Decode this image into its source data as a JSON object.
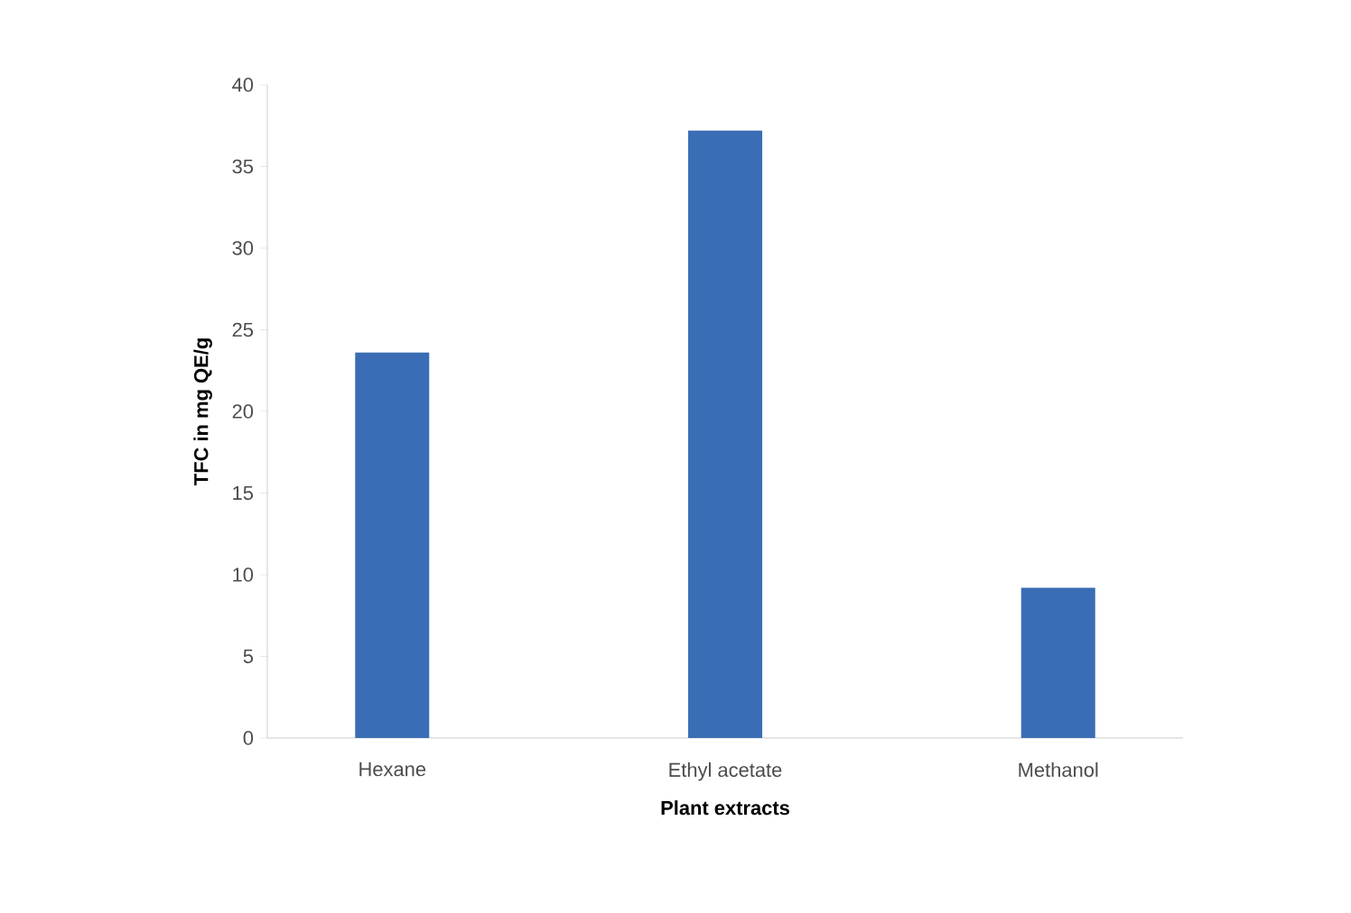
{
  "chart_data": {
    "type": "bar",
    "xlabel": "Plant extracts",
    "ylabel": "TFC in mg QE/g",
    "categories": [
      "Hexane",
      "Ethyl acetate",
      "Methanol"
    ],
    "values": [
      23.6,
      37.2,
      9.2
    ],
    "color": "#3a6db5",
    "ylim": [
      0,
      40
    ],
    "yticks": [
      0,
      5,
      10,
      15,
      20,
      25,
      30,
      35,
      40
    ],
    "grid": false
  }
}
